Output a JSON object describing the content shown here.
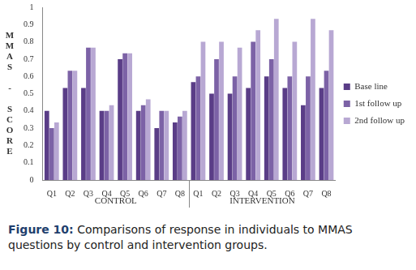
{
  "chart_data": {
    "type": "bar",
    "title": "Figure 10: Comparisons of response in individuals to MMAS questions by control and intervention groups.",
    "y_label": "MMAS - SCORE",
    "categories": [
      "Q1",
      "Q2",
      "Q3",
      "Q4",
      "Q5",
      "Q6",
      "Q7",
      "Q8",
      "Q1",
      "Q2",
      "Q3",
      "Q4",
      "Q5",
      "Q6",
      "Q7",
      "Q8"
    ],
    "groups": [
      {
        "name": "CONTROL",
        "size": 8
      },
      {
        "name": "INTERVENTION",
        "size": 8
      }
    ],
    "series": [
      {
        "name": "Base line",
        "color": "#5a3d87",
        "values": [
          0.4,
          0.533,
          0.533,
          0.4,
          0.7,
          0.4,
          0.3,
          0.333,
          0.567,
          0.5,
          0.5,
          0.533,
          0.6,
          0.533,
          0.433,
          0.533
        ]
      },
      {
        "name": "1st follow up",
        "color": "#7c62a6",
        "values": [
          0.3,
          0.633,
          0.767,
          0.4,
          0.733,
          0.433,
          0.4,
          0.367,
          0.6,
          0.7,
          0.6,
          0.8,
          0.7,
          0.6,
          0.6,
          0.633
        ]
      },
      {
        "name": "2nd follow up",
        "color": "#b8a8d3",
        "values": [
          0.333,
          0.633,
          0.767,
          0.433,
          0.733,
          0.467,
          0.4,
          0.4,
          0.8,
          0.8,
          0.767,
          0.867,
          0.933,
          0.8,
          0.933,
          0.867
        ]
      }
    ],
    "ylim": [
      0,
      1
    ],
    "yticks": [
      0,
      0.1,
      0.2,
      0.3,
      0.4,
      0.5,
      0.6,
      0.7,
      0.8,
      0.9,
      1
    ],
    "grid": false,
    "legend": "right"
  }
}
